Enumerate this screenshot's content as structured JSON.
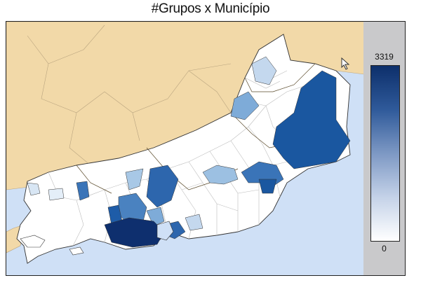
{
  "title": "#Grupos x Município",
  "legend": {
    "max_label": "3319",
    "min_label": "0",
    "color_high": "#0d2f6b",
    "color_low": "#ffffff"
  },
  "colors": {
    "land_outside": "#f2d9a8",
    "ocean": "#cfe0f6",
    "legend_panel": "#c9c9cb"
  },
  "icons": [
    "mouse-pointer-icon"
  ]
}
